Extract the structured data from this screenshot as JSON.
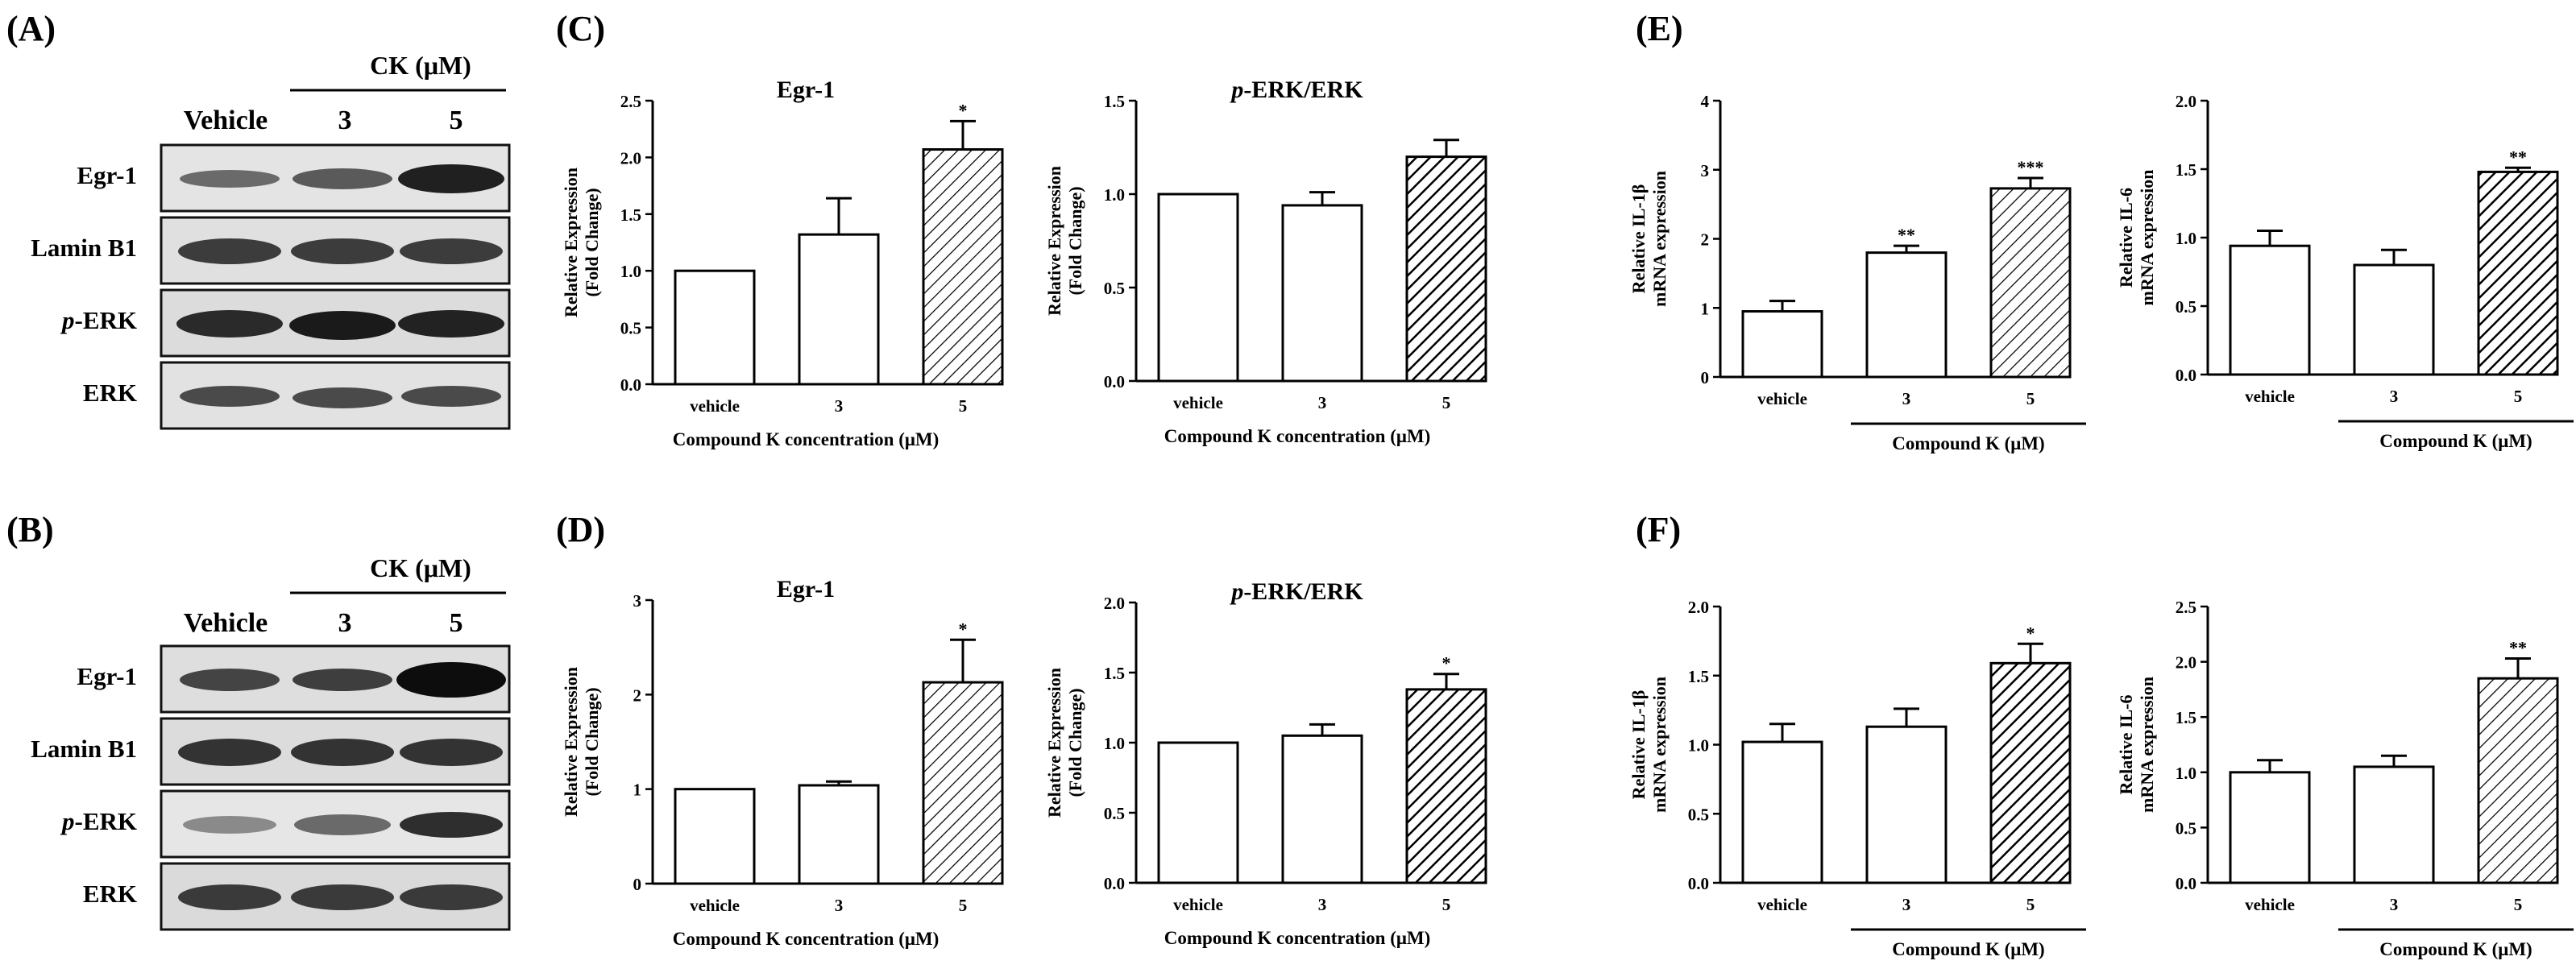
{
  "panel_labels": {
    "A": "(A)",
    "B": "(B)",
    "C": "(C)",
    "D": "(D)",
    "E": "(E)",
    "F": "(F)"
  },
  "western_blots": [
    {
      "id": "A",
      "treatment_label": "CK (μM)",
      "lane_labels": [
        "Vehicle",
        "3",
        "5"
      ],
      "row_labels": [
        {
          "prefix": "",
          "text": "Egr-1"
        },
        {
          "prefix": "",
          "text": "Lamin B1"
        },
        {
          "prefix": "p",
          "text": "-ERK"
        },
        {
          "prefix": "",
          "text": "ERK"
        }
      ]
    },
    {
      "id": "B",
      "treatment_label": "CK (μM)",
      "lane_labels": [
        "Vehicle",
        "3",
        "5"
      ],
      "row_labels": [
        {
          "prefix": "",
          "text": "Egr-1"
        },
        {
          "prefix": "",
          "text": "Lamin B1"
        },
        {
          "prefix": "p",
          "text": "-ERK"
        },
        {
          "prefix": "",
          "text": "ERK"
        }
      ]
    }
  ],
  "chart_data": [
    {
      "id": "C1",
      "type": "bar",
      "title": "Egr-1",
      "categories": [
        "vehicle",
        "3",
        "5"
      ],
      "values": [
        1.0,
        1.32,
        2.07
      ],
      "errors": [
        0,
        0.32,
        0.25
      ],
      "significance": [
        "",
        "",
        "*"
      ],
      "ylabel_lines": [
        "Relative Expression",
        "(Fold Change)"
      ],
      "xlabel": "Compound K concentration (μM)",
      "ylim": [
        0,
        2.5
      ],
      "yticks": [
        "0.0",
        "0.5",
        "1.0",
        "1.5",
        "2.0",
        "2.5"
      ]
    },
    {
      "id": "C2",
      "type": "bar",
      "title_prefix": "p",
      "title": "-ERK/ERK",
      "categories": [
        "vehicle",
        "3",
        "5"
      ],
      "values": [
        1.0,
        0.94,
        1.2
      ],
      "errors": [
        0,
        0.07,
        0.09
      ],
      "significance": [
        "",
        "",
        ""
      ],
      "ylabel_lines": [
        "Relative Expression",
        "(Fold Change)"
      ],
      "xlabel": "Compound K concentration (μM)",
      "ylim": [
        0,
        1.5
      ],
      "yticks": [
        "0.0",
        "0.5",
        "1.0",
        "1.5"
      ]
    },
    {
      "id": "D1",
      "type": "bar",
      "title": "Egr-1",
      "categories": [
        "vehicle",
        "3",
        "5"
      ],
      "values": [
        1.0,
        1.04,
        2.13
      ],
      "errors": [
        0,
        0.04,
        0.45
      ],
      "significance": [
        "",
        "",
        "*"
      ],
      "ylabel_lines": [
        "Relative Expression",
        "(Fold Change)"
      ],
      "xlabel": "Compound K concentration (μM)",
      "ylim": [
        0,
        3
      ],
      "yticks": [
        "0",
        "1",
        "2",
        "3"
      ]
    },
    {
      "id": "D2",
      "type": "bar",
      "title_prefix": "p",
      "title": "-ERK/ERK",
      "categories": [
        "vehicle",
        "3",
        "5"
      ],
      "values": [
        1.0,
        1.05,
        1.38
      ],
      "errors": [
        0,
        0.08,
        0.11
      ],
      "significance": [
        "",
        "",
        "*"
      ],
      "ylabel_lines": [
        "Relative Expression",
        "(Fold Change)"
      ],
      "xlabel": "Compound K concentration (μM)",
      "ylim": [
        0,
        2.0
      ],
      "yticks": [
        "0.0",
        "0.5",
        "1.0",
        "1.5",
        "2.0"
      ]
    },
    {
      "id": "E1",
      "type": "bar",
      "title": "",
      "categories": [
        "vehicle",
        "3",
        "5"
      ],
      "values": [
        0.95,
        1.8,
        2.73
      ],
      "errors": [
        0.15,
        0.1,
        0.15
      ],
      "significance": [
        "",
        "**",
        "***"
      ],
      "ylabel_lines": [
        "Relative IL-1β",
        "mRNA expression"
      ],
      "xlabel": "Compound K (μM)",
      "xlabel_bracket": true,
      "ylim": [
        0,
        4
      ],
      "yticks": [
        "0",
        "1",
        "2",
        "3",
        "4"
      ]
    },
    {
      "id": "E2",
      "type": "bar",
      "title": "",
      "categories": [
        "vehicle",
        "3",
        "5"
      ],
      "values": [
        0.94,
        0.8,
        1.48
      ],
      "errors": [
        0.11,
        0.11,
        0.03
      ],
      "significance": [
        "",
        "",
        "**"
      ],
      "ylabel_lines": [
        "Relative IL-6",
        "mRNA expression"
      ],
      "xlabel": "Compound K (μM)",
      "xlabel_bracket": true,
      "ylim": [
        0,
        2.0
      ],
      "yticks": [
        "0.0",
        "0.5",
        "1.0",
        "1.5",
        "2.0"
      ]
    },
    {
      "id": "F1",
      "type": "bar",
      "title": "",
      "categories": [
        "vehicle",
        "3",
        "5"
      ],
      "values": [
        1.02,
        1.13,
        1.59
      ],
      "errors": [
        0.13,
        0.13,
        0.14
      ],
      "significance": [
        "",
        "",
        "*"
      ],
      "ylabel_lines": [
        "Relative IL-1β",
        "mRNA expression"
      ],
      "xlabel": "Compound K (μM)",
      "xlabel_bracket": true,
      "ylim": [
        0,
        2.0
      ],
      "yticks": [
        "0.0",
        "0.5",
        "1.0",
        "1.5",
        "2.0"
      ]
    },
    {
      "id": "F2",
      "type": "bar",
      "title": "",
      "categories": [
        "vehicle",
        "3",
        "5"
      ],
      "values": [
        1.0,
        1.05,
        1.85
      ],
      "errors": [
        0.11,
        0.1,
        0.18
      ],
      "significance": [
        "",
        "",
        "**"
      ],
      "ylabel_lines": [
        "Relative IL-6",
        "mRNA expression"
      ],
      "xlabel": "Compound K (μM)",
      "xlabel_bracket": true,
      "ylim": [
        0,
        2.5
      ],
      "yticks": [
        "0.0",
        "0.5",
        "1.0",
        "1.5",
        "2.0",
        "2.5"
      ]
    }
  ]
}
